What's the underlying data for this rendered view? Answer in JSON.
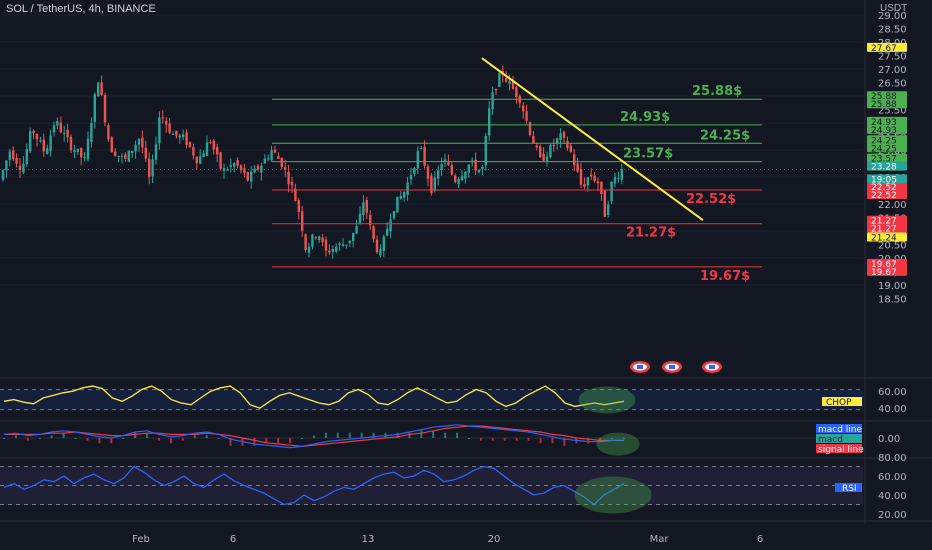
{
  "header": {
    "symbol": "SOL / TetherUS, 4h, BINANCE",
    "currency": "USDT"
  },
  "chart_data": {
    "type": "candlestick",
    "main": {
      "y_range": [
        19.0,
        29.0
      ],
      "y_ticks": [
        "29.00",
        "28.50",
        "28.00",
        "27.50",
        "27.00",
        "26.50",
        "26.00",
        "25.50",
        "25.00",
        "24.50",
        "24.00",
        "23.50",
        "23.00",
        "22.50",
        "22.00",
        "21.50",
        "21.00",
        "20.50",
        "20.00",
        "19.50",
        "19.00",
        "18.50"
      ],
      "path": [
        [
          0,
          22.9
        ],
        [
          10,
          24.0
        ],
        [
          22,
          23.3
        ],
        [
          32,
          24.8
        ],
        [
          45,
          23.9
        ],
        [
          55,
          25.1
        ],
        [
          70,
          24.2
        ],
        [
          85,
          23.6
        ],
        [
          98,
          26.7
        ],
        [
          110,
          24.1
        ],
        [
          125,
          23.6
        ],
        [
          140,
          24.5
        ],
        [
          150,
          22.8
        ],
        [
          160,
          25.4
        ],
        [
          172,
          24.6
        ],
        [
          185,
          24.4
        ],
        [
          198,
          23.6
        ],
        [
          210,
          24.4
        ],
        [
          222,
          23.2
        ],
        [
          235,
          23.5
        ],
        [
          248,
          22.9
        ],
        [
          262,
          23.5
        ],
        [
          272,
          24.0
        ],
        [
          282,
          23.5
        ],
        [
          292,
          22.6
        ],
        [
          300,
          21.6
        ],
        [
          306,
          20.3
        ],
        [
          312,
          20.7
        ],
        [
          318,
          21.0
        ],
        [
          325,
          20.2
        ],
        [
          335,
          20.4
        ],
        [
          348,
          20.6
        ],
        [
          358,
          21.2
        ],
        [
          364,
          22.2
        ],
        [
          372,
          20.8
        ],
        [
          380,
          20.1
        ],
        [
          392,
          21.8
        ],
        [
          405,
          22.5
        ],
        [
          420,
          24.1
        ],
        [
          432,
          22.5
        ],
        [
          443,
          23.7
        ],
        [
          455,
          22.9
        ],
        [
          470,
          23.5
        ],
        [
          482,
          23.2
        ],
        [
          490,
          25.7
        ],
        [
          496,
          26.4
        ],
        [
          502,
          26.9
        ],
        [
          510,
          26.4
        ],
        [
          520,
          25.9
        ],
        [
          528,
          24.9
        ],
        [
          540,
          23.6
        ],
        [
          552,
          24.1
        ],
        [
          560,
          24.5
        ],
        [
          570,
          24.0
        ],
        [
          582,
          22.6
        ],
        [
          590,
          23.1
        ],
        [
          598,
          22.8
        ],
        [
          605,
          21.6
        ],
        [
          612,
          22.8
        ],
        [
          620,
          23.2
        ],
        [
          625,
          23.4
        ]
      ],
      "horizontal_levels": [
        {
          "value": 25.88,
          "label": "25.88$",
          "color": "#4caf50"
        },
        {
          "value": 24.93,
          "label": "24.93$",
          "color": "#4caf50"
        },
        {
          "value": 24.25,
          "label": "24.25$",
          "color": "#4caf50"
        },
        {
          "value": 23.57,
          "label": "23.57$",
          "color": "#4caf50"
        },
        {
          "value": 22.52,
          "label": "22.52$",
          "color": "#f23645"
        },
        {
          "value": 21.27,
          "label": "21.27$",
          "color": "#f23645"
        },
        {
          "value": 19.67,
          "label": "19.67$",
          "color": "#f23645"
        }
      ],
      "trendline": {
        "from": [
          482,
          27.4
        ],
        "to": [
          703,
          21.4
        ],
        "color": "#ffeb3b"
      },
      "last_price": 23.28,
      "countdown": "19:05",
      "price_badges": [
        {
          "value": 27.67,
          "text": "27.67",
          "fill": "#ffeb3b",
          "fg": "#131722"
        },
        {
          "value": 25.88,
          "text": "25.88",
          "fill": "#4caf50",
          "fg": "#131722"
        },
        {
          "value": 25.88,
          "text": "25.88",
          "fill": "#4caf50",
          "fg": "#131722",
          "stack": 1
        },
        {
          "value": 24.93,
          "text": "24.93",
          "fill": "#4caf50",
          "fg": "#131722"
        },
        {
          "value": 24.93,
          "text": "24.93",
          "fill": "#4caf50",
          "fg": "#131722",
          "stack": 1
        },
        {
          "value": 24.25,
          "text": "24.25",
          "fill": "#4caf50",
          "fg": "#131722"
        },
        {
          "value": 24.25,
          "text": "24.25",
          "fill": "#4caf50",
          "fg": "#131722",
          "stack": 1
        },
        {
          "value": 23.57,
          "text": "23.57",
          "fill": "#4caf50",
          "fg": "#131722"
        },
        {
          "value": 23.57,
          "text": "23.57",
          "fill": "#4caf50",
          "fg": "#131722",
          "stack": 1
        },
        {
          "value": 23.28,
          "text": "23.28",
          "fill": "#26a69a",
          "fg": "#ffffff"
        },
        {
          "value": 22.52,
          "text": "22.52",
          "fill": "#f23645",
          "fg": "#ffffff"
        },
        {
          "value": 22.52,
          "text": "22.52",
          "fill": "#f23645",
          "fg": "#ffffff",
          "stack": 1
        },
        {
          "value": 21.27,
          "text": "21.27",
          "fill": "#f23645",
          "fg": "#ffffff"
        },
        {
          "value": 21.27,
          "text": "21.27",
          "fill": "#f23645",
          "fg": "#ffffff",
          "stack": 1
        },
        {
          "value": 21.24,
          "text": "21.24",
          "fill": "#ffeb3b",
          "fg": "#131722",
          "stack": 2
        },
        {
          "value": 19.67,
          "text": "19.67",
          "fill": "#f23645",
          "fg": "#ffffff"
        },
        {
          "value": 19.67,
          "text": "19.67",
          "fill": "#f23645",
          "fg": "#ffffff",
          "stack": 1
        }
      ]
    },
    "chop": {
      "label": "CHOP",
      "y_range": [
        33,
        72
      ],
      "ticks": [
        "60.00",
        "40.00"
      ],
      "color": "#ffeb3b",
      "band": [
        38.2,
        61.8
      ],
      "values": [
        48,
        50,
        47,
        45,
        52,
        55,
        58,
        60,
        64,
        66,
        63,
        52,
        48,
        54,
        62,
        66,
        60,
        50,
        46,
        44,
        52,
        60,
        64,
        66,
        58,
        44,
        40,
        48,
        55,
        58,
        54,
        50,
        46,
        44,
        48,
        58,
        62,
        56,
        46,
        44,
        50,
        58,
        64,
        58,
        52,
        46,
        48,
        56,
        62,
        58,
        48,
        42,
        46,
        54,
        60,
        66,
        58,
        46,
        42,
        44,
        46,
        44,
        46,
        48
      ]
    },
    "macd": {
      "legend": [
        "macd line",
        "macd",
        "signal line"
      ],
      "colors": {
        "macd_line": "#2962ff",
        "signal_line": "#f23645",
        "hist_up": "#26a69a",
        "hist_down": "#f23645"
      },
      "tick": "0.00",
      "values": [
        0.3,
        0.4,
        0.2,
        0.3,
        0.5,
        0.6,
        0.5,
        0.3,
        0.1,
        0.0,
        0.2,
        0.5,
        0.6,
        0.3,
        0.1,
        0.2,
        0.4,
        0.5,
        0.3,
        -0.1,
        -0.3,
        -0.5,
        -0.6,
        -0.7,
        -0.8,
        -0.7,
        -0.5,
        -0.3,
        -0.2,
        -0.1,
        0.0,
        0.1,
        0.2,
        0.3,
        0.5,
        0.7,
        0.9,
        1.0,
        1.1,
        1.0,
        0.9,
        0.8,
        0.7,
        0.6,
        0.5,
        0.3,
        0.1,
        -0.1,
        -0.2,
        -0.3,
        -0.3,
        -0.2,
        -0.2
      ],
      "signal": [
        0.3,
        0.3,
        0.3,
        0.3,
        0.4,
        0.4,
        0.5,
        0.4,
        0.3,
        0.2,
        0.2,
        0.3,
        0.4,
        0.4,
        0.3,
        0.3,
        0.3,
        0.4,
        0.3,
        0.2,
        0.0,
        -0.2,
        -0.4,
        -0.5,
        -0.6,
        -0.7,
        -0.6,
        -0.5,
        -0.4,
        -0.3,
        -0.2,
        -0.1,
        0.0,
        0.1,
        0.3,
        0.4,
        0.6,
        0.8,
        0.9,
        1.0,
        1.0,
        0.9,
        0.8,
        0.7,
        0.6,
        0.5,
        0.3,
        0.2,
        0.0,
        -0.1,
        -0.2,
        -0.2,
        -0.2
      ]
    },
    "rsi": {
      "label": "RSI",
      "y_range": [
        15,
        85
      ],
      "ticks": [
        "80.00",
        "60.00",
        "40.00",
        "20.00"
      ],
      "color": "#2962ff",
      "band": [
        30,
        70
      ],
      "values": [
        48,
        52,
        46,
        50,
        56,
        54,
        60,
        52,
        58,
        62,
        56,
        52,
        58,
        70,
        64,
        56,
        50,
        54,
        60,
        52,
        48,
        56,
        62,
        55,
        50,
        46,
        42,
        36,
        30,
        32,
        40,
        34,
        38,
        44,
        48,
        46,
        52,
        58,
        62,
        64,
        58,
        60,
        66,
        62,
        54,
        56,
        60,
        66,
        70,
        68,
        60,
        52,
        46,
        40,
        42,
        48,
        50,
        44,
        38,
        30,
        40,
        46,
        52
      ]
    },
    "x_ticks": [
      "Feb",
      "6",
      "13",
      "20",
      "Mar",
      "6"
    ],
    "event_markers": 3
  }
}
